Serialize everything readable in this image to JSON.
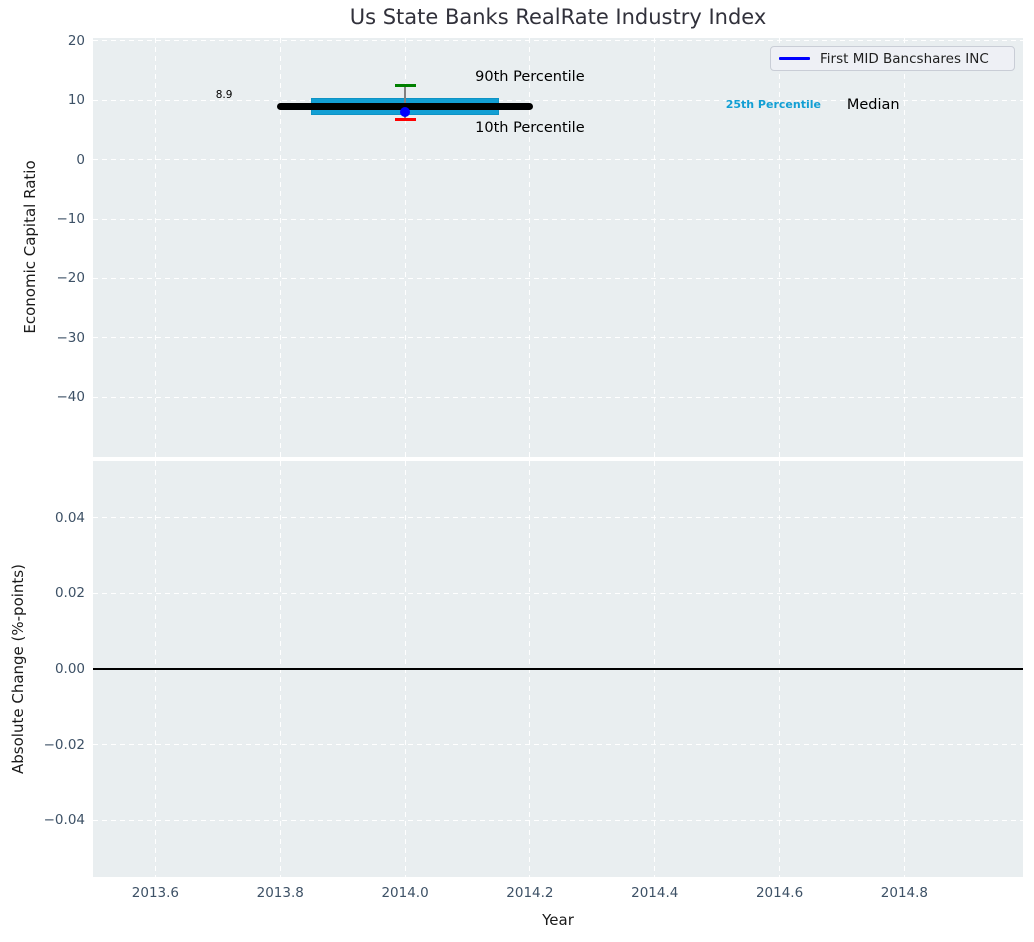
{
  "colors": {
    "figure_bg": "#ffffff",
    "axes_bg": "#e9eef0",
    "grid_white": "#ffffff",
    "tick_text": "#3d5166",
    "box_cyan": "#129fd4",
    "box_cyan_edge": "#0e93c4",
    "median_black": "#000000",
    "whisker_gray": "#808080",
    "cap_green": "#008000",
    "cap_red": "#ff0000",
    "line_blue": "#0000ff",
    "zero_line_black": "#000000"
  },
  "chart_data": [
    {
      "type": "boxplot",
      "title": "Us State Banks RealRate Industry Index",
      "xlabel": "Year",
      "ylabel": "Economic Capital Ratio",
      "xlim": [
        2013.5,
        2014.99
      ],
      "ylim": [
        -50.1,
        20.5
      ],
      "grid": true,
      "xticks": {
        "values": [
          2013.6,
          2013.8,
          2014.0,
          2014.2,
          2014.4,
          2014.6,
          2014.8
        ],
        "labels": [
          "2013.6",
          "2013.8",
          "2014.0",
          "2014.2",
          "2014.4",
          "2014.6",
          "2014.8"
        ]
      },
      "yticks": {
        "values": [
          20,
          10,
          0,
          -10,
          -20,
          -30,
          -40
        ],
        "labels": [
          "20",
          "10",
          "0",
          "−10",
          "−20",
          "−30",
          "−40"
        ]
      },
      "legend": {
        "position": "upper right",
        "entries": [
          {
            "label": "First MID Bancshares INC",
            "color": "#0000ff"
          }
        ]
      },
      "box": {
        "x": 2014.0,
        "median": 8.9,
        "q1": 7.5,
        "q3": 10.4,
        "p10": 6.8,
        "p90": 12.5,
        "box_x_range": [
          2013.85,
          2014.15
        ],
        "median_x_range": [
          2013.8,
          2014.2
        ]
      },
      "points": [
        {
          "name": "First MID Bancshares INC",
          "x": 2014.0,
          "y": 8.0
        }
      ],
      "annotations": [
        {
          "name": "median-value-label",
          "text": "8.9",
          "x": 2013.71,
          "y": 10.8,
          "color": "#000000",
          "size": 10.5,
          "bold": false
        },
        {
          "name": "annotation-90th-percentile",
          "text": "90th Percentile",
          "x": 2014.2,
          "y": 13.8,
          "color": "#000000",
          "size": 14.5,
          "bold": false
        },
        {
          "name": "annotation-10th-percentile",
          "text": "10th Percentile",
          "x": 2014.2,
          "y": 5.2,
          "color": "#000000",
          "size": 14.5,
          "bold": false
        },
        {
          "name": "annotation-25th-percentile",
          "text": "25th Percentile",
          "x": 2014.59,
          "y": 9.2,
          "color": "#129fd4",
          "size": 11,
          "bold": true
        },
        {
          "name": "annotation-median",
          "text": "Median",
          "x": 2014.75,
          "y": 9.1,
          "color": "#000000",
          "size": 14.5,
          "bold": false
        }
      ]
    },
    {
      "type": "line",
      "ylabel": "Absolute Change (%-points)",
      "xlim": [
        2013.5,
        2014.99
      ],
      "ylim": [
        -0.055,
        0.055
      ],
      "grid": true,
      "yticks": {
        "values": [
          0.04,
          0.02,
          0.0,
          -0.02,
          -0.04
        ],
        "labels": [
          "0.04",
          "0.02",
          "0.00",
          "−0.02",
          "−0.04"
        ]
      },
      "zero_line": 0.0,
      "series": []
    }
  ]
}
